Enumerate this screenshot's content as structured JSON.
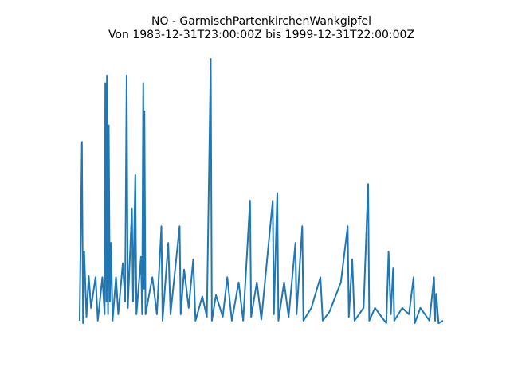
{
  "chart_data": {
    "type": "line",
    "title": "NO - GarmischPartenkirchenWankgipfel",
    "subtitle": "Von 1983-12-31T23:00:00Z bis 1999-12-31T22:00:00Z",
    "color": "#1f77b4",
    "xlim": [
      1983.3,
      2000.7
    ],
    "ylim": [
      -1,
      22
    ],
    "x": [
      1984.0,
      1984.1,
      1984.15,
      1984.2,
      1984.3,
      1984.4,
      1984.5,
      1984.7,
      1984.8,
      1985.0,
      1985.1,
      1985.13,
      1985.18,
      1985.2,
      1985.25,
      1985.28,
      1985.33,
      1985.38,
      1985.45,
      1985.6,
      1985.7,
      1985.9,
      1986.0,
      1986.07,
      1986.12,
      1986.3,
      1986.35,
      1986.45,
      1986.5,
      1986.7,
      1986.75,
      1986.8,
      1986.83,
      1986.85,
      1986.9,
      1987.2,
      1987.4,
      1987.6,
      1987.65,
      1987.9,
      1988.0,
      1988.4,
      1988.45,
      1988.6,
      1988.8,
      1989.0,
      1989.1,
      1989.4,
      1989.6,
      1989.77,
      1989.82,
      1990.0,
      1990.3,
      1990.5,
      1990.7,
      1991.0,
      1991.2,
      1991.5,
      1991.55,
      1991.8,
      1992.0,
      1992.5,
      1992.55,
      1992.7,
      1992.75,
      1993.0,
      1993.2,
      1993.5,
      1993.55,
      1993.8,
      1993.85,
      1994.2,
      1994.6,
      1994.7,
      1995.0,
      1995.5,
      1995.8,
      1995.85,
      1996.0,
      1996.1,
      1996.5,
      1996.7,
      1996.75,
      1997.0,
      1997.5,
      1997.6,
      1997.7,
      1997.8,
      1997.85,
      1998.2,
      1998.5,
      1998.7,
      1998.75,
      1999.0,
      1999.4,
      1999.6,
      1999.65,
      1999.7,
      1999.8,
      2000.0
    ],
    "values": [
      0.5,
      14.5,
      0.3,
      5.9,
      0.8,
      4,
      1.5,
      3.9,
      0.5,
      3.9,
      1.0,
      19.1,
      2,
      19.7,
      1,
      15.8,
      2,
      6.6,
      0.5,
      3.9,
      1,
      5,
      2,
      19.7,
      1.5,
      9.3,
      2,
      11.9,
      1,
      5.5,
      1,
      19.1,
      3,
      16.9,
      1,
      3.9,
      1,
      7.9,
      0.5,
      6.6,
      1,
      7.9,
      1,
      4.5,
      1.5,
      5.3,
      0.5,
      2.4,
      0.8,
      21,
      0.5,
      2.5,
      0.8,
      3.9,
      0.5,
      3.5,
      0.5,
      9.9,
      0.8,
      3.5,
      0.6,
      9.9,
      1,
      10.5,
      0.5,
      3.5,
      0.8,
      6.6,
      1,
      7.9,
      0.5,
      1.5,
      3.9,
      0.5,
      1.2,
      3.5,
      7.9,
      0.8,
      5.3,
      0.5,
      1.5,
      11.2,
      0.5,
      1.5,
      0.3,
      5.9,
      1,
      4.6,
      0.5,
      1.5,
      1,
      3.9,
      0.3,
      1.5,
      0.5,
      3.9,
      0.5,
      2.6,
      0.3,
      0.5
    ]
  }
}
